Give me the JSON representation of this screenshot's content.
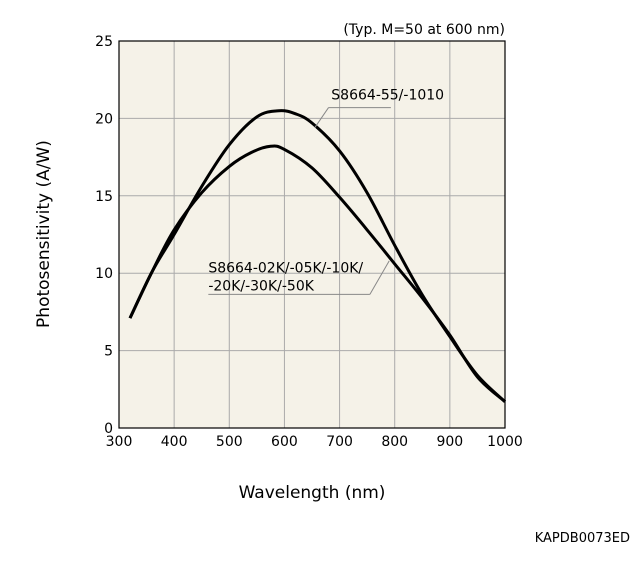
{
  "chart_data": {
    "type": "line",
    "title": "",
    "subtitle": "(Typ. M=50 at 600 nm)",
    "xlabel": "Wavelength (nm)",
    "ylabel": "Photosensitivity (A/W)",
    "xlim": [
      300,
      1000
    ],
    "ylim": [
      0,
      25
    ],
    "x_ticks": [
      300,
      400,
      500,
      600,
      700,
      800,
      900,
      1000
    ],
    "y_ticks": [
      0,
      5,
      10,
      15,
      20,
      25
    ],
    "grid": true,
    "plot_background": "#f5f2e8",
    "line_color": "#000000",
    "series": [
      {
        "name": "S8664-55/-1010",
        "x": [
          320,
          360,
          400,
          450,
          500,
          550,
          590,
          620,
          650,
          700,
          750,
          800,
          850,
          900,
          950,
          1000
        ],
        "y": [
          7.1,
          10.1,
          12.5,
          15.6,
          18.3,
          20.1,
          20.5,
          20.3,
          19.7,
          17.9,
          15.2,
          11.8,
          8.6,
          5.9,
          3.4,
          1.7
        ]
      },
      {
        "name": "S8664-02K/-05K/-10K/-20K/-30K/-50K",
        "x": [
          320,
          360,
          400,
          450,
          500,
          540,
          575,
          600,
          650,
          700,
          750,
          800,
          850,
          900,
          950,
          1000
        ],
        "y": [
          7.1,
          10.1,
          12.8,
          15.2,
          16.9,
          17.8,
          18.2,
          18.0,
          16.8,
          14.9,
          12.8,
          10.6,
          8.4,
          6.0,
          3.3,
          1.7
        ]
      }
    ],
    "annotations": [
      {
        "text": "S8664-55/-1010",
        "series": 0
      },
      {
        "lines": [
          "S8664-02K/-05K/-10K/",
          "-20K/-30K/-50K"
        ],
        "series": 1
      }
    ]
  },
  "footer_code": "KAPDB0073ED"
}
